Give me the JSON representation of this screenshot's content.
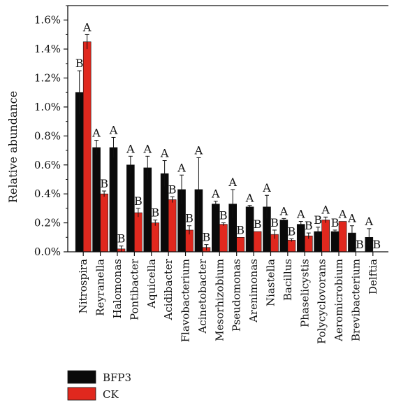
{
  "chart_data": {
    "type": "bar",
    "ylabel": "Relative abundance",
    "ylim": [
      0,
      1.7
    ],
    "yticks": [
      0.0,
      0.2,
      0.4,
      0.6,
      0.8,
      1.0,
      1.2,
      1.4,
      1.6
    ],
    "ytick_labels": [
      "0.0%",
      "0.2%",
      "0.4%",
      "0.6%",
      "0.8%",
      "1.0%",
      "1.2%",
      "1.4%",
      "1.6%"
    ],
    "categories": [
      "Nitrospira",
      "Reyranella",
      "Halomonas",
      "Pontibacter",
      "Aquicella",
      "Acidibacter",
      "Flavobacterium",
      "Acinetobacter",
      "Mesorhizobium",
      "Pseudomonas",
      "Arenimonas",
      "Niastella",
      "Bacillus",
      "Phaselicystis",
      "Polycyclovorans",
      "Aeromicrobium",
      "Brevibacterium",
      "Delftia"
    ],
    "series": [
      {
        "name": "BFP3",
        "color": "#0a0a0a",
        "values": [
          1.1,
          0.72,
          0.72,
          0.6,
          0.58,
          0.54,
          0.43,
          0.43,
          0.33,
          0.33,
          0.31,
          0.31,
          0.22,
          0.19,
          0.14,
          0.14,
          0.13,
          0.1
        ],
        "errors": [
          0.15,
          0.05,
          0.07,
          0.06,
          0.08,
          0.09,
          0.1,
          0.22,
          0.02,
          0.1,
          0.01,
          0.08,
          0.01,
          0.02,
          0.03,
          0.01,
          0.05,
          0.06
        ],
        "significance": [
          "B",
          "A",
          "A",
          "A",
          "A",
          "A",
          "A",
          "A",
          "A",
          "A",
          "A",
          "A",
          "A",
          "A",
          "B",
          "B",
          "A",
          "A"
        ]
      },
      {
        "name": "CK",
        "color": "#e0281e",
        "values": [
          1.45,
          0.4,
          0.02,
          0.27,
          0.2,
          0.36,
          0.15,
          0.03,
          0.19,
          0.1,
          0.14,
          0.12,
          0.08,
          0.11,
          0.22,
          0.21,
          0.0,
          0.0
        ],
        "errors": [
          0.05,
          0.02,
          0.02,
          0.03,
          0.02,
          0.02,
          0.03,
          0.02,
          0.01,
          0.0,
          0.0,
          0.03,
          0.01,
          0.02,
          0.02,
          0.0,
          0.0,
          0.0
        ],
        "significance": [
          "A",
          "B",
          "B",
          "B",
          "B",
          "B",
          "B",
          "B",
          "B",
          "B",
          "B",
          "B",
          "B",
          "B",
          "A",
          "A",
          "B",
          "B"
        ]
      }
    ],
    "legend_position": "bottom-left"
  }
}
